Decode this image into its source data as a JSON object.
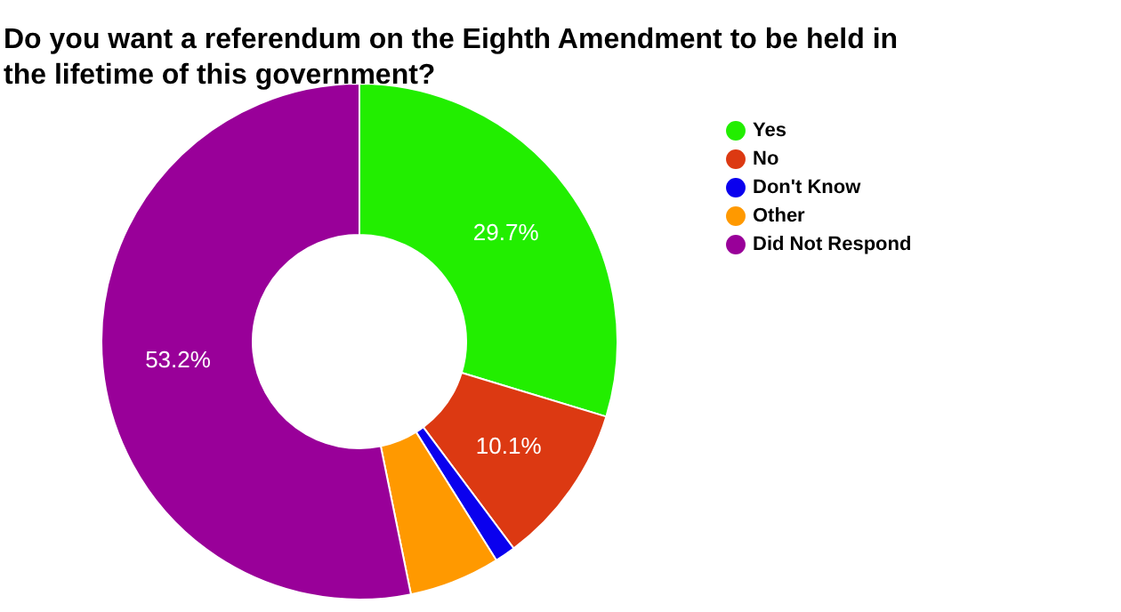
{
  "chart_data": {
    "type": "donut",
    "title": "Do you want a referendum on the Eighth Amendment to be held in the lifetime of this government?",
    "categories": [
      "Yes",
      "No",
      "Don't Know",
      "Other",
      "Did Not Respond"
    ],
    "values": [
      29.7,
      10.1,
      1.3,
      5.7,
      53.2
    ],
    "colors": [
      "#22ee00",
      "#dc3912",
      "#0a00ee",
      "#ff9900",
      "#990099"
    ],
    "value_labels": [
      "29.7%",
      "10.1%",
      null,
      null,
      "53.2%"
    ],
    "legend": "right"
  }
}
